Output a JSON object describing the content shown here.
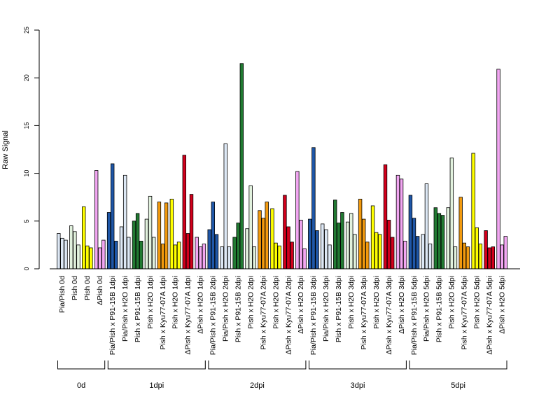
{
  "chart_data": {
    "type": "bar",
    "title": "",
    "xlabel": "",
    "ylabel": "Raw Signal",
    "ylim": [
      0,
      25
    ],
    "yticks": [
      0,
      5,
      10,
      15,
      20,
      25
    ],
    "grid": false,
    "bar_palette": {
      "light_blue": "#DDE8F5",
      "dark_blue": "#1F57A8",
      "pale_green": "#E2F2DE",
      "dark_green": "#217A32",
      "yellow": "#FFFF00",
      "orange": "#F29A0E",
      "red": "#D3001C",
      "pink": "#F2A6F2"
    },
    "groups": [
      {
        "label": "Pia/Pish 0d",
        "values": [
          3.7,
          3.2,
          3.0
        ],
        "colors": [
          "light_blue",
          "light_blue",
          "light_blue"
        ]
      },
      {
        "label": "Pish 0d",
        "values": [
          4.5,
          3.9,
          2.5
        ],
        "colors": [
          "pale_green",
          "pale_green",
          "pale_green"
        ]
      },
      {
        "label": "Pish 0d",
        "values": [
          6.5,
          2.4,
          2.2
        ],
        "colors": [
          "yellow",
          "yellow",
          "yellow"
        ]
      },
      {
        "label": "ΔPish 0d",
        "values": [
          10.3,
          2.2,
          3.0
        ],
        "colors": [
          "pink",
          "pink",
          "pink"
        ]
      },
      {
        "label": "Pia/Pish x P91-15B 1dpi",
        "values": [
          5.9,
          11.0,
          2.9
        ],
        "colors": [
          "dark_blue",
          "dark_blue",
          "dark_blue"
        ]
      },
      {
        "label": "Pia/Pish x H2O 1dpi",
        "values": [
          4.4,
          9.8,
          3.3
        ],
        "colors": [
          "light_blue",
          "light_blue",
          "light_blue"
        ]
      },
      {
        "label": "Pish x P91-15B 1dpi",
        "values": [
          5.0,
          5.8,
          2.9
        ],
        "colors": [
          "dark_green",
          "dark_green",
          "dark_green"
        ]
      },
      {
        "label": "Pish x H2O 1dpi",
        "values": [
          5.2,
          7.6,
          3.3
        ],
        "colors": [
          "pale_green",
          "pale_green",
          "pale_green"
        ]
      },
      {
        "label": "Pish x Kyu77-07A 1dpi",
        "values": [
          7.0,
          2.6,
          6.9
        ],
        "colors": [
          "orange",
          "orange",
          "orange"
        ]
      },
      {
        "label": "Pish x H2O 1dpi",
        "values": [
          7.3,
          2.5,
          2.8
        ],
        "colors": [
          "yellow",
          "yellow",
          "yellow"
        ]
      },
      {
        "label": "ΔPish x Kyu77-07A 1dpi",
        "values": [
          11.9,
          3.7,
          7.8
        ],
        "colors": [
          "red",
          "red",
          "red"
        ]
      },
      {
        "label": "ΔPish x H2O 1dpi",
        "values": [
          3.3,
          2.3,
          2.6
        ],
        "colors": [
          "pink",
          "pink",
          "pink"
        ]
      },
      {
        "label": "Pia/Pish x P91-15B 2dpi",
        "values": [
          4.1,
          7.0,
          3.6
        ],
        "colors": [
          "dark_blue",
          "dark_blue",
          "dark_blue"
        ]
      },
      {
        "label": "Pia/Pish x H2O 2dpi",
        "values": [
          2.3,
          13.1,
          2.3
        ],
        "colors": [
          "light_blue",
          "light_blue",
          "light_blue"
        ]
      },
      {
        "label": "Pish x P91-15B 2dpi",
        "values": [
          3.3,
          4.8,
          21.5
        ],
        "colors": [
          "dark_green",
          "dark_green",
          "dark_green"
        ]
      },
      {
        "label": "Pish x H2O 2dpi",
        "values": [
          4.2,
          8.7,
          2.3
        ],
        "colors": [
          "pale_green",
          "pale_green",
          "pale_green"
        ]
      },
      {
        "label": "Pish x Kyu77-07A 2dpi",
        "values": [
          6.1,
          5.3,
          7.0
        ],
        "colors": [
          "orange",
          "orange",
          "orange"
        ]
      },
      {
        "label": "Pish x H2O 2dpi",
        "values": [
          6.3,
          2.7,
          2.4
        ],
        "colors": [
          "yellow",
          "yellow",
          "yellow"
        ]
      },
      {
        "label": "ΔPish x Kyu77-07A 2dpi",
        "values": [
          7.7,
          4.4,
          2.8
        ],
        "colors": [
          "red",
          "red",
          "red"
        ]
      },
      {
        "label": "ΔPish x H2O 2dpi",
        "values": [
          10.2,
          5.1,
          2.1
        ],
        "colors": [
          "pink",
          "pink",
          "pink"
        ]
      },
      {
        "label": "Pia/Pish x P91-15B 3dpi",
        "values": [
          5.2,
          12.7,
          4.0
        ],
        "colors": [
          "dark_blue",
          "dark_blue",
          "dark_blue"
        ]
      },
      {
        "label": "Pia/Pish x H2O 3dpi",
        "values": [
          4.7,
          4.1,
          2.5
        ],
        "colors": [
          "light_blue",
          "light_blue",
          "light_blue"
        ]
      },
      {
        "label": "Pish x P91-15B 3dpi",
        "values": [
          7.2,
          4.8,
          5.9
        ],
        "colors": [
          "dark_green",
          "dark_green",
          "dark_green"
        ]
      },
      {
        "label": "Pish x H2O 3dpi",
        "values": [
          4.9,
          5.8,
          3.6
        ],
        "colors": [
          "pale_green",
          "pale_green",
          "pale_green"
        ]
      },
      {
        "label": "Pish x Kyu77-07A 3dpi",
        "values": [
          7.3,
          5.2,
          2.8
        ],
        "colors": [
          "orange",
          "orange",
          "orange"
        ]
      },
      {
        "label": "Pish x H2O 3dpi",
        "values": [
          6.6,
          3.8,
          3.6
        ],
        "colors": [
          "yellow",
          "yellow",
          "yellow"
        ]
      },
      {
        "label": "ΔPish x Kyu77-07A 3dpi",
        "values": [
          10.9,
          5.1,
          3.3
        ],
        "colors": [
          "red",
          "red",
          "red"
        ]
      },
      {
        "label": "ΔPish x H2O 3dpi",
        "values": [
          9.8,
          9.4,
          2.9
        ],
        "colors": [
          "pink",
          "pink",
          "pink"
        ]
      },
      {
        "label": "Pia/Pish x P91-15B 5dpi",
        "values": [
          7.7,
          5.3,
          3.4
        ],
        "colors": [
          "dark_blue",
          "dark_blue",
          "dark_blue"
        ]
      },
      {
        "label": "Pia/Pish x H2O 5dpi",
        "values": [
          3.6,
          8.9,
          2.6
        ],
        "colors": [
          "light_blue",
          "light_blue",
          "light_blue"
        ]
      },
      {
        "label": "Pish x P91-15B 5dpi",
        "values": [
          6.4,
          5.8,
          5.6
        ],
        "colors": [
          "dark_green",
          "dark_green",
          "dark_green"
        ]
      },
      {
        "label": "Pish x H2O 5dpi",
        "values": [
          6.4,
          11.6,
          2.3
        ],
        "colors": [
          "pale_green",
          "pale_green",
          "pale_green"
        ]
      },
      {
        "label": "Pish x Kyu77-07A 5dpi",
        "values": [
          7.5,
          2.7,
          2.3
        ],
        "colors": [
          "orange",
          "orange",
          "orange"
        ]
      },
      {
        "label": "Pish x H2O 5dpi",
        "values": [
          12.1,
          4.3,
          2.6
        ],
        "colors": [
          "yellow",
          "yellow",
          "yellow"
        ]
      },
      {
        "label": "ΔPish x Kyu77-07A 5dpi",
        "values": [
          4.0,
          2.2,
          2.3
        ],
        "colors": [
          "red",
          "red",
          "red"
        ]
      },
      {
        "label": "ΔPish x H2O 5dpi",
        "values": [
          20.9,
          2.5,
          3.4
        ],
        "colors": [
          "pink",
          "pink",
          "pink"
        ]
      }
    ],
    "timepoints": [
      {
        "label": "0d",
        "first_group": 0,
        "last_group": 3
      },
      {
        "label": "1dpi",
        "first_group": 4,
        "last_group": 11
      },
      {
        "label": "2dpi",
        "first_group": 12,
        "last_group": 19
      },
      {
        "label": "3dpi",
        "first_group": 20,
        "last_group": 27
      },
      {
        "label": "5dpi",
        "first_group": 28,
        "last_group": 35
      }
    ]
  }
}
